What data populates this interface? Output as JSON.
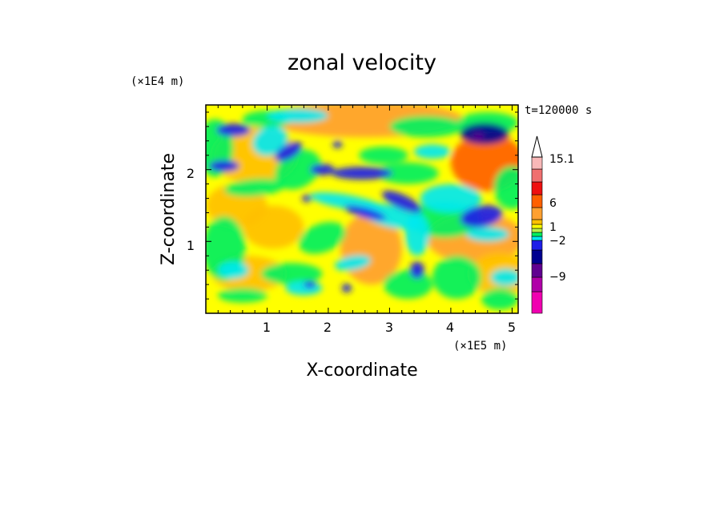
{
  "chart_data": {
    "type": "heatmap",
    "title": "zonal velocity",
    "xlabel": "X-coordinate",
    "ylabel": "Z-coordinate",
    "x_unit_label": "(×1E5 m)",
    "y_unit_label": "(×1E4 m)",
    "time_label": "t=120000 s",
    "xlim": [
      0,
      5.1
    ],
    "ylim": [
      0,
      2.9
    ],
    "x_ticks": [
      "1",
      "2",
      "3",
      "4",
      "5"
    ],
    "y_ticks": [
      "1",
      "2"
    ],
    "colorbar": {
      "levels": [
        -15,
        -12,
        -9,
        -6,
        -4,
        -2,
        -1,
        0,
        1,
        2,
        3,
        6,
        9,
        12,
        15.1
      ],
      "tick_labels": [
        "15.1",
        "6",
        "1",
        "−2",
        "−9"
      ],
      "colors": [
        "#f000b0",
        "#b000a8",
        "#600090",
        "#000090",
        "#1e1ee8",
        "#00e8f0",
        "#00f060",
        "#b8f048",
        "#ffff00",
        "#ffc000",
        "#ffa030",
        "#ff6000",
        "#ee1010",
        "#f07070",
        "#f8b8b8",
        "#ffffff"
      ],
      "extend": "max"
    }
  }
}
